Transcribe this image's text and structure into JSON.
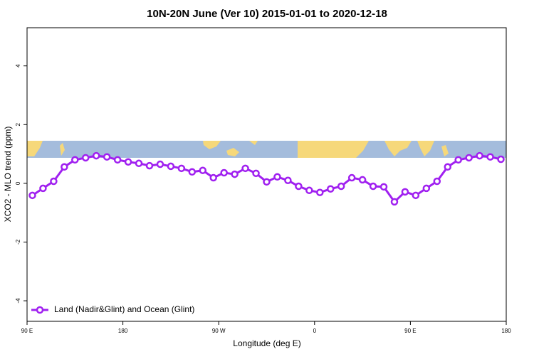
{
  "chart_data": {
    "type": "line",
    "title": "10N-20N June (Ver 10)   2015-01-01 to 2020-12-18",
    "x_label": "Longitude (deg E)",
    "y_label": "XCO2 - MLO trend (ppm)",
    "x": [
      95,
      105,
      115,
      125,
      135,
      145,
      155,
      165,
      175,
      185,
      195,
      205,
      215,
      225,
      235,
      245,
      255,
      265,
      275,
      285,
      295,
      305,
      315,
      325,
      335,
      345,
      355,
      365,
      375,
      385,
      395,
      405,
      415,
      425,
      435,
      445,
      455,
      465,
      475,
      485,
      495,
      505,
      515,
      525,
      535
    ],
    "series": [
      {
        "name": "Land (Nadir&Glint) and Ocean (Glint)",
        "color": "#a020f0",
        "values": [
          -0.41,
          -0.17,
          0.07,
          0.56,
          0.8,
          0.87,
          0.94,
          0.9,
          0.8,
          0.73,
          0.68,
          0.6,
          0.65,
          0.58,
          0.51,
          0.39,
          0.44,
          0.19,
          0.36,
          0.31,
          0.51,
          0.34,
          0.05,
          0.22,
          0.1,
          -0.1,
          -0.24,
          -0.31,
          -0.19,
          -0.1,
          0.19,
          0.12,
          -0.1,
          -0.12,
          -0.63,
          -0.29,
          -0.41,
          -0.17,
          0.07,
          0.56,
          0.8,
          0.87,
          0.94,
          0.9,
          0.82
        ]
      }
    ],
    "xlim": [
      90,
      540
    ],
    "xticks": [
      {
        "value": 90,
        "label": "90 E"
      },
      180,
      {
        "value": 270,
        "label": "90 W"
      },
      {
        "value": 360,
        "label": "0"
      },
      {
        "value": 450,
        "label": "90 E"
      },
      {
        "value": 540,
        "label": "180"
      }
    ],
    "ylim": [
      -4.7,
      5.3
    ],
    "yticks": [
      -4,
      -2,
      0,
      2,
      4
    ],
    "legend": "bottom-left"
  }
}
